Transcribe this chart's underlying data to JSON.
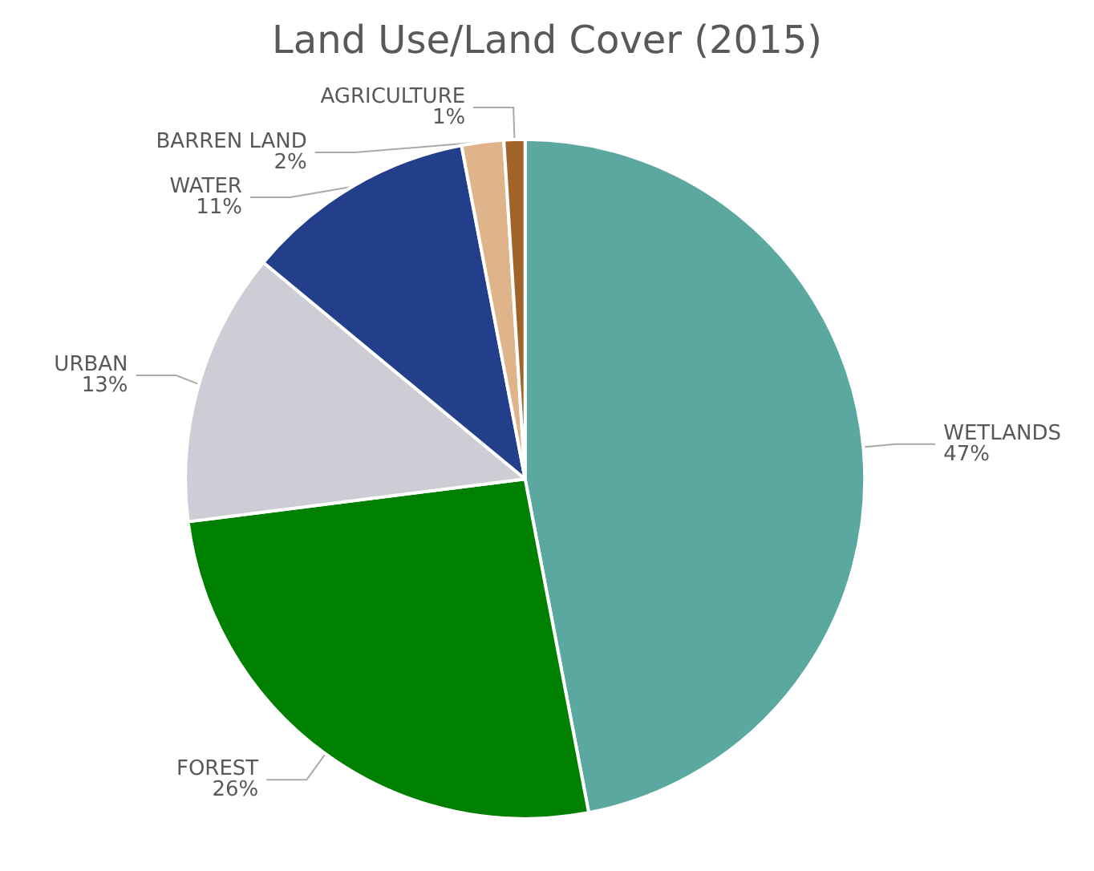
{
  "chart_data": {
    "type": "pie",
    "title": "Land Use/Land Cover (2015)",
    "categories": [
      "WETLANDS",
      "FOREST",
      "URBAN",
      "WATER",
      "BARREN LAND",
      "AGRICULTURE"
    ],
    "values": [
      47,
      26,
      13,
      11,
      2,
      1
    ],
    "colors": [
      "#5ba8a0",
      "#008000",
      "#cdcdd5",
      "#233e8b",
      "#e0b48a",
      "#a0642a"
    ],
    "value_labels": [
      "47%",
      "26%",
      "13%",
      "11%",
      "2%",
      "1%"
    ],
    "legend": false
  }
}
